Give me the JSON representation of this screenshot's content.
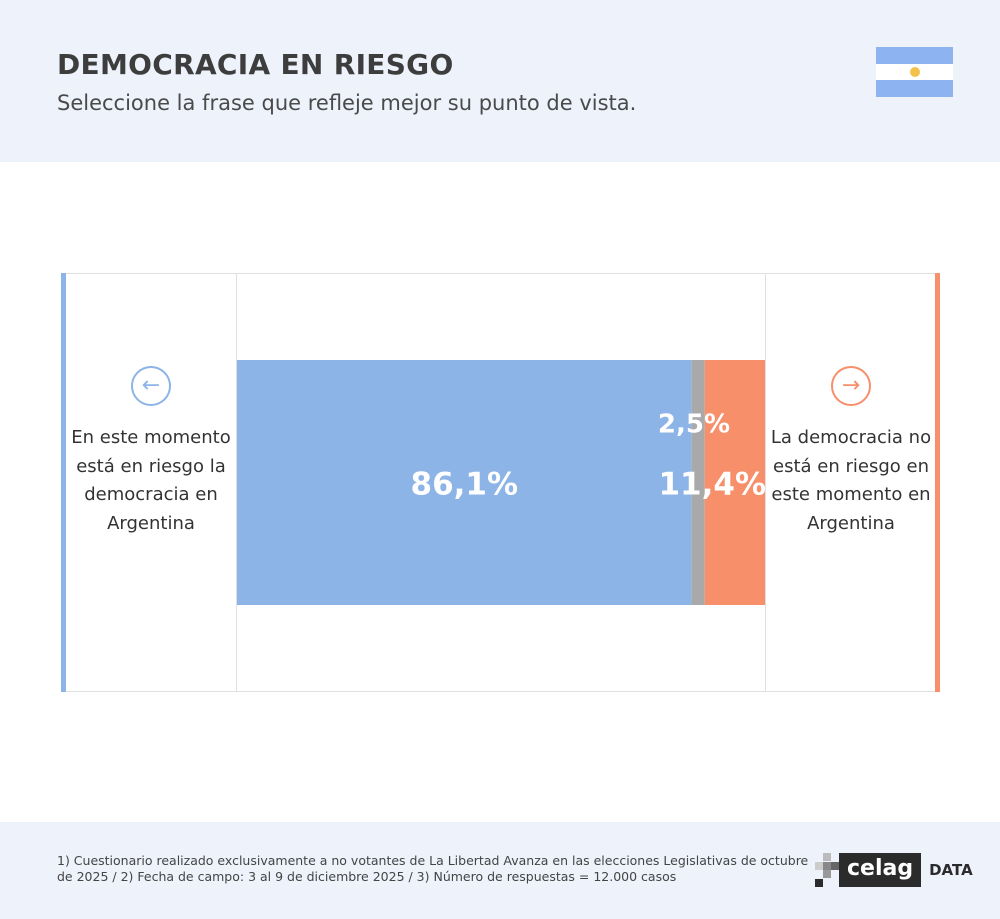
{
  "header": {
    "title": "DEMOCRACIA EN RIESGO",
    "subtitle": "Seleccione la frase que refleje mejor su punto de vista."
  },
  "flag": {
    "colors": [
      "#8db4f0",
      "#ffffff",
      "#8db4f0"
    ],
    "sun": "#f2c24b"
  },
  "left_option": {
    "icon": "arrow-left-icon",
    "text": "En este momento está en riesgo la democracia en Argentina",
    "color": "#8db4e6"
  },
  "right_option": {
    "icon": "arrow-right-icon",
    "text": "La democracia no está en riesgo en este momento en Argentina",
    "color": "#f68f6a"
  },
  "chart_data": {
    "type": "bar",
    "orientation": "horizontal",
    "stacked": true,
    "xlim": [
      0,
      100
    ],
    "series": [
      {
        "value": 86.1,
        "label": "86,1%",
        "color": "#8db4e6"
      },
      {
        "value": 2.5,
        "label": "2,5%",
        "color": "#a9a9a9"
      },
      {
        "value": 11.4,
        "label": "11,4%",
        "color": "#f68f6a"
      }
    ]
  },
  "footer": {
    "note": "1) Cuestionario realizado exclusivamente a no votantes de La Libertad Avanza en las elecciones Legislativas de octubre de 2025  /  2) Fecha de campo: 3 al 9 de diciembre 2025 /  3) Número de respuestas = 12.000 casos",
    "logo_text": "celag",
    "logo_suffix": "DATA"
  }
}
